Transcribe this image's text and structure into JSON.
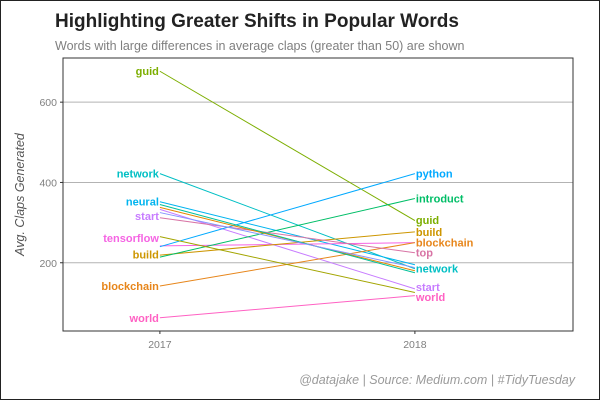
{
  "header": {
    "title": "Highlighting Greater Shifts in Popular Words",
    "subtitle": "Words with large differences in average claps (greater than 50) are shown"
  },
  "caption": "@datajake | Source: Medium.com | #TidyTuesday",
  "chart_data": {
    "type": "line",
    "style": "slopegraph",
    "x": [
      2017,
      2018
    ],
    "x_tick_labels": [
      "2017",
      "2018"
    ],
    "ylabel": "Avg. Claps Generated",
    "y_ticks": [
      200,
      400,
      600
    ],
    "ylim": [
      30,
      710
    ],
    "xlim": [
      2016.62,
      2018.62
    ],
    "grid": true,
    "legend": "none",
    "series": [
      {
        "name": "guid",
        "color": "#7cae00",
        "values": [
          677,
          305
        ]
      },
      {
        "name": "network",
        "color": "#00bfc4",
        "values": [
          422,
          185
        ]
      },
      {
        "name": "neural",
        "color": "#00b4ef",
        "values": [
          352,
          195
        ]
      },
      {
        "name": "start",
        "color": "#c77cff",
        "values": [
          333,
          135
        ]
      },
      {
        "name": "tensorflow",
        "color": "#f564e3",
        "values": [
          242,
          250
        ]
      },
      {
        "name": "build",
        "color": "#cd9600",
        "values": [
          219,
          277
        ]
      },
      {
        "name": "blockchain",
        "color": "#e7861b",
        "values": [
          142,
          250
        ]
      },
      {
        "name": "world",
        "color": "#ff61c3",
        "values": [
          63,
          118
        ]
      },
      {
        "name": "python",
        "color": "#00a9ff",
        "values": [
          240,
          422
        ]
      },
      {
        "name": "introduct",
        "color": "#00be67",
        "values": [
          214,
          360
        ]
      },
      {
        "name": "top",
        "color": "#d874a5",
        "values": [
          312,
          225
        ]
      },
      {
        "name": "",
        "color": "#e58700",
        "values": [
          338,
          180
        ]
      },
      {
        "name": "",
        "color": "#a3a500",
        "values": [
          265,
          126
        ]
      },
      {
        "name": "",
        "color": "#00c19a",
        "values": [
          345,
          175
        ]
      },
      {
        "name": "",
        "color": "#8494ff",
        "values": [
          325,
          188
        ]
      }
    ],
    "labels_left": [
      {
        "text": "guid",
        "color": "#7cae00",
        "y": 677
      },
      {
        "text": "network",
        "color": "#00bfc4",
        "y": 422
      },
      {
        "text": "neural",
        "color": "#00b4ef",
        "y": 352
      },
      {
        "text": "start",
        "color": "#c77cff",
        "y": 317
      },
      {
        "text": "tensorflow",
        "color": "#f564e3",
        "y": 262
      },
      {
        "text": "build",
        "color": "#cd9600",
        "y": 221
      },
      {
        "text": "blockchain",
        "color": "#e7861b",
        "y": 142
      },
      {
        "text": "world",
        "color": "#ff61c3",
        "y": 63
      }
    ],
    "labels_right": [
      {
        "text": "python",
        "color": "#00a9ff",
        "y": 422
      },
      {
        "text": "introduct",
        "color": "#00be67",
        "y": 360
      },
      {
        "text": "guid",
        "color": "#7cae00",
        "y": 306
      },
      {
        "text": "build",
        "color": "#cd9600",
        "y": 277
      },
      {
        "text": "blockchain",
        "color": "#e7861b",
        "y": 250
      },
      {
        "text": "top",
        "color": "#d874a5",
        "y": 225
      },
      {
        "text": "network",
        "color": "#00bfc4",
        "y": 186
      },
      {
        "text": "start",
        "color": "#c77cff",
        "y": 140
      },
      {
        "text": "world",
        "color": "#ff61c3",
        "y": 115
      }
    ]
  }
}
